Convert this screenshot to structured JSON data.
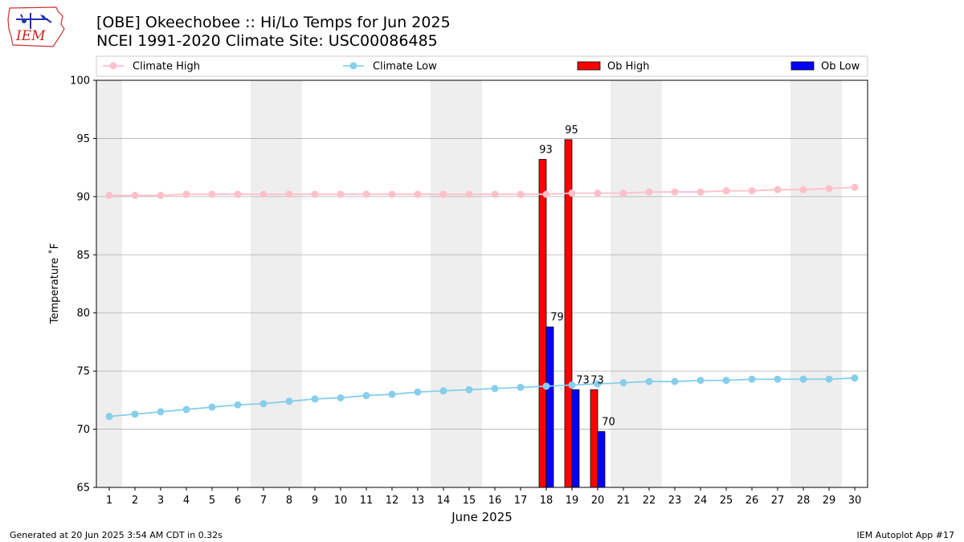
{
  "header": {
    "title_line1": "[OBE] Okeechobee :: Hi/Lo Temps for Jun 2025",
    "title_line2": "NCEI 1991-2020 Climate Site: USC00086485"
  },
  "logo": {
    "text": "IEM",
    "icon": "iem-iowa-logo-icon"
  },
  "footer": {
    "left": "Generated at 20 Jun 2025 3:54 AM CDT in 0.32s",
    "right": "IEM Autoplot App #17"
  },
  "colors": {
    "climate_high": "#ffc0cb",
    "climate_low": "#87ceeb",
    "ob_high": "#ff0000",
    "ob_low": "#0000ff",
    "weekend_band": "#eeeeee",
    "grid": "#b0b0b0"
  },
  "chart_data": {
    "type": "bar",
    "xlabel": "June 2025",
    "ylabel": "Temperature ˚F",
    "xlim": [
      0.5,
      30.5
    ],
    "ylim": [
      65,
      100
    ],
    "x_ticks": [
      1,
      2,
      3,
      4,
      5,
      6,
      7,
      8,
      9,
      10,
      11,
      12,
      13,
      14,
      15,
      16,
      17,
      18,
      19,
      20,
      21,
      22,
      23,
      24,
      25,
      26,
      27,
      28,
      29,
      30
    ],
    "y_ticks": [
      65,
      70,
      75,
      80,
      85,
      90,
      95,
      100
    ],
    "grid": "y",
    "legend_position": "top",
    "weekend_bands": [
      [
        0.5,
        1.5
      ],
      [
        6.5,
        8.5
      ],
      [
        13.5,
        15.5
      ],
      [
        20.5,
        22.5
      ],
      [
        27.5,
        29.5
      ]
    ],
    "series": [
      {
        "name": "Climate High",
        "type": "line",
        "x": [
          1,
          2,
          3,
          4,
          5,
          6,
          7,
          8,
          9,
          10,
          11,
          12,
          13,
          14,
          15,
          16,
          17,
          18,
          19,
          20,
          21,
          22,
          23,
          24,
          25,
          26,
          27,
          28,
          29,
          30
        ],
        "values": [
          90.1,
          90.1,
          90.1,
          90.2,
          90.2,
          90.2,
          90.2,
          90.2,
          90.2,
          90.2,
          90.2,
          90.2,
          90.2,
          90.2,
          90.2,
          90.2,
          90.2,
          90.2,
          90.3,
          90.3,
          90.3,
          90.4,
          90.4,
          90.4,
          90.5,
          90.5,
          90.6,
          90.6,
          90.7,
          90.8
        ]
      },
      {
        "name": "Climate Low",
        "type": "line",
        "x": [
          1,
          2,
          3,
          4,
          5,
          6,
          7,
          8,
          9,
          10,
          11,
          12,
          13,
          14,
          15,
          16,
          17,
          18,
          19,
          20,
          21,
          22,
          23,
          24,
          25,
          26,
          27,
          28,
          29,
          30
        ],
        "values": [
          71.1,
          71.3,
          71.5,
          71.7,
          71.9,
          72.1,
          72.2,
          72.4,
          72.6,
          72.7,
          72.9,
          73.0,
          73.2,
          73.3,
          73.4,
          73.5,
          73.6,
          73.7,
          73.8,
          73.9,
          74.0,
          74.1,
          74.1,
          74.2,
          74.2,
          74.3,
          74.3,
          74.3,
          74.3,
          74.4
        ]
      },
      {
        "name": "Ob High",
        "type": "bar",
        "x": [
          18,
          19,
          20
        ],
        "values": [
          93.2,
          94.9,
          73.4
        ],
        "labels": [
          "93",
          "95",
          "73"
        ]
      },
      {
        "name": "Ob Low",
        "type": "bar",
        "x": [
          18,
          19,
          20
        ],
        "values": [
          78.8,
          73.4,
          69.8
        ],
        "labels": [
          "79",
          "73",
          "70"
        ]
      }
    ]
  }
}
